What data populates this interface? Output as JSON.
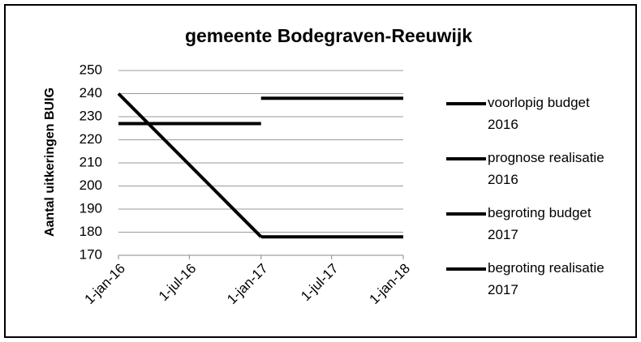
{
  "chart_data": {
    "type": "line",
    "title": "gemeente Bodegraven-Reeuwijk",
    "ylabel": "Aantal uitkeringen BUIG",
    "series": [
      {
        "name": "voorlopig budget 2016",
        "color": "#000000",
        "x": [
          "2016-01-01",
          "2017-01-01"
        ],
        "values": [
          227,
          227
        ]
      },
      {
        "name": "prognose realisatie 2016",
        "color": "#000000",
        "x": [
          "2016-01-01",
          "2017-01-01"
        ],
        "values": [
          240,
          178
        ]
      },
      {
        "name": "begroting budget 2017",
        "color": "#000000",
        "x": [
          "2017-01-01",
          "2018-01-01"
        ],
        "values": [
          238,
          238
        ]
      },
      {
        "name": "begroting realisatie 2017",
        "color": "#000000",
        "x": [
          "2017-01-01",
          "2018-01-01"
        ],
        "values": [
          178,
          178
        ]
      }
    ],
    "xlim": [
      "2016-01-01",
      "2018-01-01"
    ],
    "xticks": [
      {
        "value": "2016-01-01",
        "label": "1-jan-16"
      },
      {
        "value": "2016-07-01",
        "label": "1-jul-16"
      },
      {
        "value": "2017-01-01",
        "label": "1-jan-17"
      },
      {
        "value": "2017-07-01",
        "label": "1-jul-17"
      },
      {
        "value": "2018-01-01",
        "label": "1-jan-18"
      }
    ],
    "ylim": [
      170,
      250
    ],
    "yticks": [
      170,
      180,
      190,
      200,
      210,
      220,
      230,
      240,
      250
    ],
    "grid": true,
    "legend": "right"
  }
}
